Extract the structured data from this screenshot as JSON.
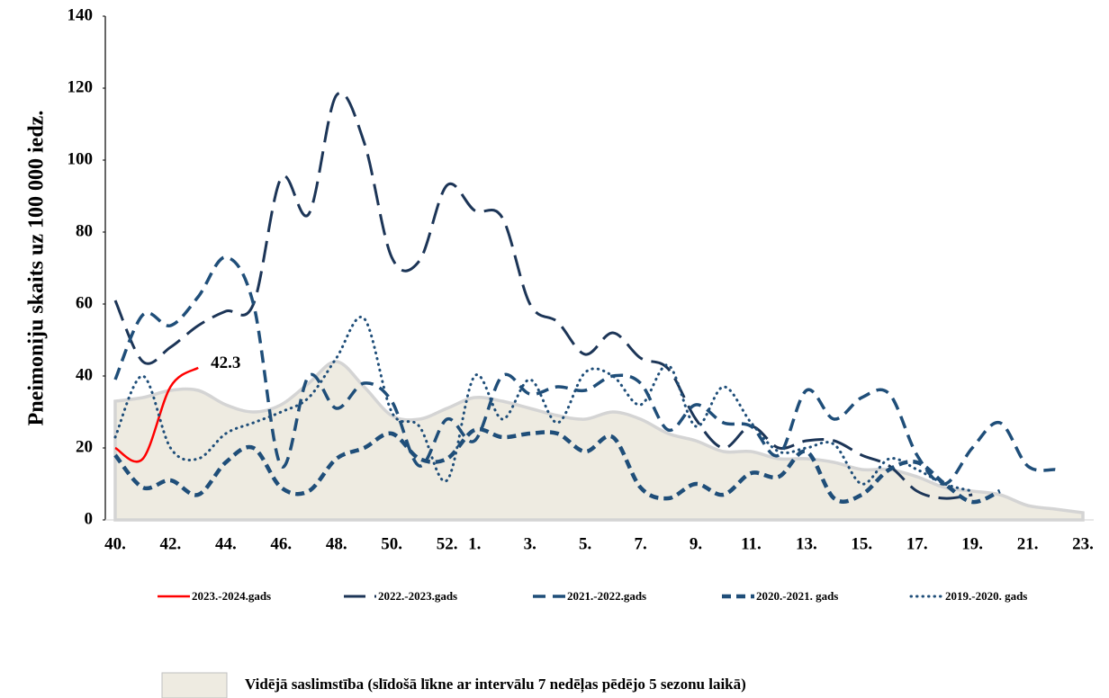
{
  "chart_data": {
    "type": "line",
    "y_label": "Pneimoniju skaits uz 100 000 iedz.",
    "categories": [
      "40.",
      null,
      "42.",
      null,
      "44.",
      null,
      "46.",
      null,
      "48.",
      null,
      "50.",
      null,
      "52.",
      "1.",
      null,
      "3.",
      null,
      "5.",
      null,
      "7.",
      null,
      "9.",
      null,
      "11.",
      null,
      "13.",
      null,
      "15.",
      null,
      "17.",
      null,
      "19.",
      null,
      "21.",
      null,
      "23."
    ],
    "ylim": [
      0,
      140
    ],
    "yticks": [
      0,
      20,
      40,
      60,
      80,
      100,
      120,
      140
    ],
    "grid": false,
    "legend": "bottom",
    "series": [
      {
        "name": "Vidējā saslimstība (slīdošā līkne ar intervālu 7 nedēļas pēdējo 5 sezonu laikā)",
        "style": "area",
        "color": "#eeebe1",
        "values": [
          33,
          34,
          36,
          36,
          32,
          30,
          32,
          38,
          44,
          37,
          29,
          28,
          31,
          34,
          33,
          31,
          29,
          28,
          30,
          28,
          24,
          22,
          19,
          19,
          17,
          17,
          16,
          14,
          14,
          12,
          9,
          8,
          7,
          4,
          3,
          2
        ]
      },
      {
        "name": "2023.-2024.gads",
        "style": "solid",
        "color": "#ff0000",
        "values": [
          20,
          17,
          37,
          42.3,
          null,
          null,
          null,
          null,
          null,
          null,
          null,
          null,
          null,
          null,
          null,
          null,
          null,
          null,
          null,
          null,
          null,
          null,
          null,
          null,
          null,
          null,
          null,
          null,
          null,
          null,
          null,
          null,
          null,
          null,
          null,
          null
        ]
      },
      {
        "name": "2022.-2023.gads",
        "style": "long",
        "color": "#1c3557",
        "values": [
          61,
          44,
          48,
          54,
          58,
          60,
          95,
          85,
          118,
          105,
          73,
          72,
          93,
          86,
          84,
          60,
          55,
          46,
          52,
          45,
          42,
          28,
          20,
          26,
          20,
          22,
          22,
          18,
          15,
          8,
          6,
          7,
          null,
          null,
          null,
          null
        ]
      },
      {
        "name": "2021.-2022.gads",
        "style": "medium",
        "color": "#1f4e79",
        "values": [
          39,
          57,
          54,
          62,
          73,
          60,
          15,
          40,
          31,
          38,
          33,
          15,
          28,
          22,
          40,
          35,
          37,
          36,
          40,
          38,
          25,
          32,
          27,
          26,
          18,
          36,
          28,
          34,
          35,
          18,
          10,
          20,
          27,
          15,
          14,
          null
        ]
      },
      {
        "name": "2020.-2021. gads",
        "style": "thick",
        "color": "#1f4e79",
        "values": [
          18,
          9,
          11,
          7,
          16,
          20,
          9,
          8,
          17,
          20,
          24,
          17,
          17,
          25,
          23,
          24,
          24,
          19,
          23,
          9,
          6,
          10,
          7,
          13,
          12,
          19,
          6,
          7,
          14,
          16,
          10,
          5,
          8,
          null,
          null,
          null
        ]
      },
      {
        "name": "2019.-2020. gads",
        "style": "dotted",
        "color": "#1f4e79",
        "values": [
          23,
          40,
          20,
          17,
          24,
          27,
          30,
          34,
          45,
          56,
          30,
          26,
          11,
          40,
          28,
          39,
          27,
          41,
          40,
          32,
          43,
          26,
          37,
          27,
          19,
          20,
          21,
          10,
          17,
          14,
          10,
          8,
          null,
          null,
          null,
          null
        ]
      }
    ],
    "value_label": {
      "series": 1,
      "index": 3
    }
  }
}
